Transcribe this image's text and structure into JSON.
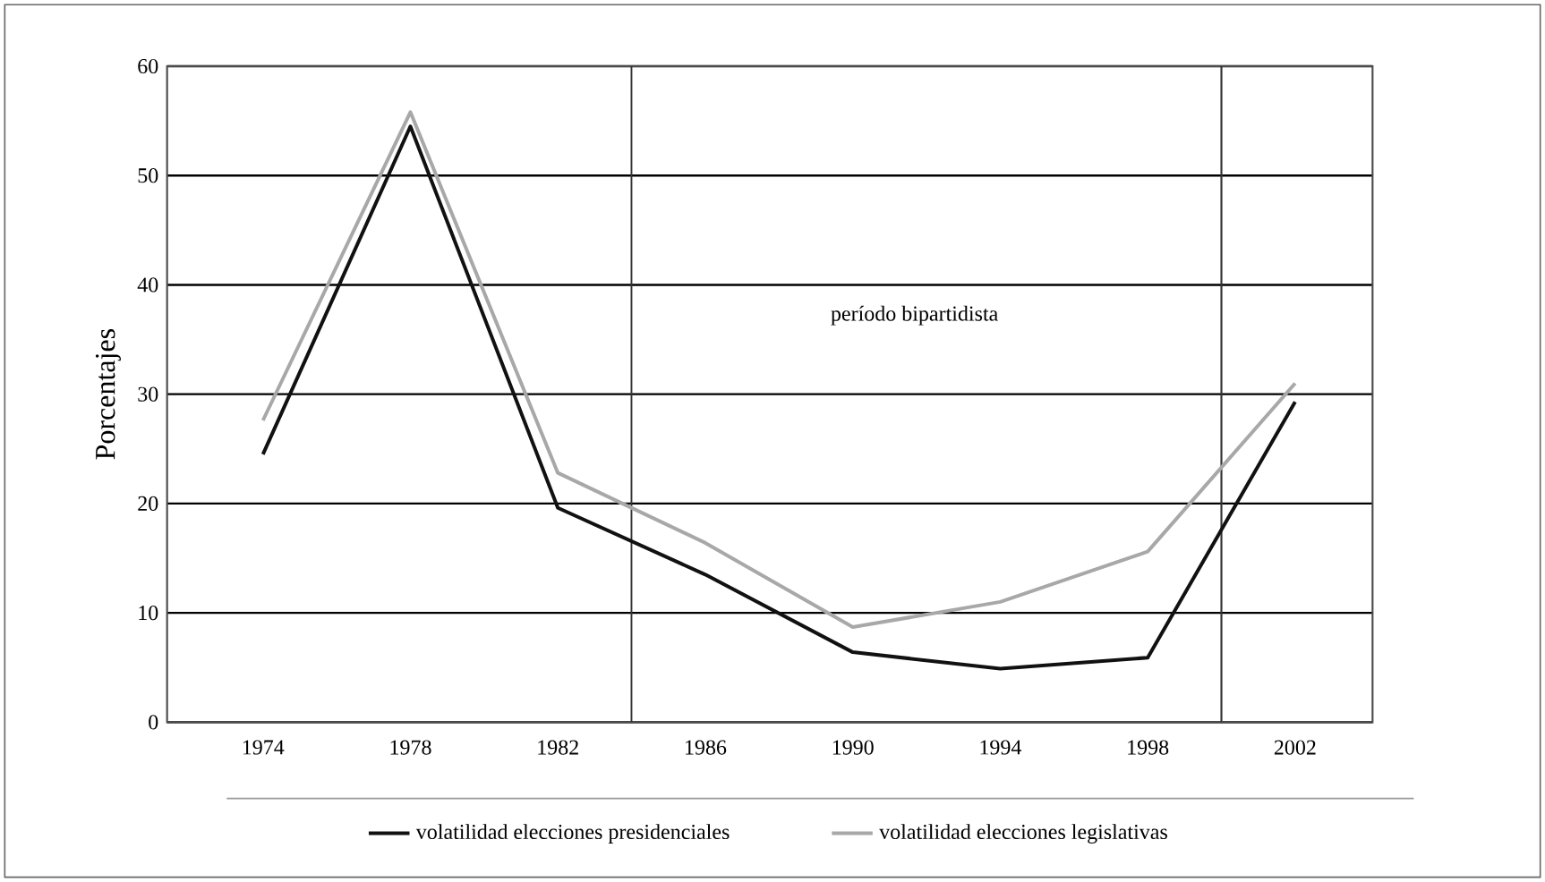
{
  "chart_data": {
    "type": "line",
    "ylabel": "Porcentajes",
    "x": [
      1974,
      1978,
      1982,
      1986,
      1990,
      1994,
      1998,
      2002
    ],
    "xlim": [
      1971.4,
      2004.1
    ],
    "xticks": [
      1974,
      1978,
      1982,
      1986,
      1990,
      1994,
      1998,
      2002
    ],
    "ylim": [
      0,
      60
    ],
    "yticks": [
      0,
      10,
      20,
      30,
      40,
      50,
      60
    ],
    "grid": "y",
    "series": [
      {
        "name": "volatilidad elecciones presidenciales",
        "color": "#111111",
        "values": [
          24.5,
          54.5,
          19.6,
          13.5,
          6.4,
          4.9,
          5.9,
          29.3
        ]
      },
      {
        "name": "volatilidad elecciones legislativas",
        "color": "#a8a8a8",
        "values": [
          27.6,
          55.8,
          22.8,
          16.4,
          8.7,
          11.0,
          15.6,
          31.0
        ]
      }
    ],
    "ref_lines": [
      {
        "axis": "x",
        "value": 1984
      },
      {
        "axis": "x",
        "value": 2000
      }
    ],
    "annotations": [
      "período bipartidista"
    ],
    "legend": "bottom",
    "marker": "none",
    "line_style": "solid"
  }
}
